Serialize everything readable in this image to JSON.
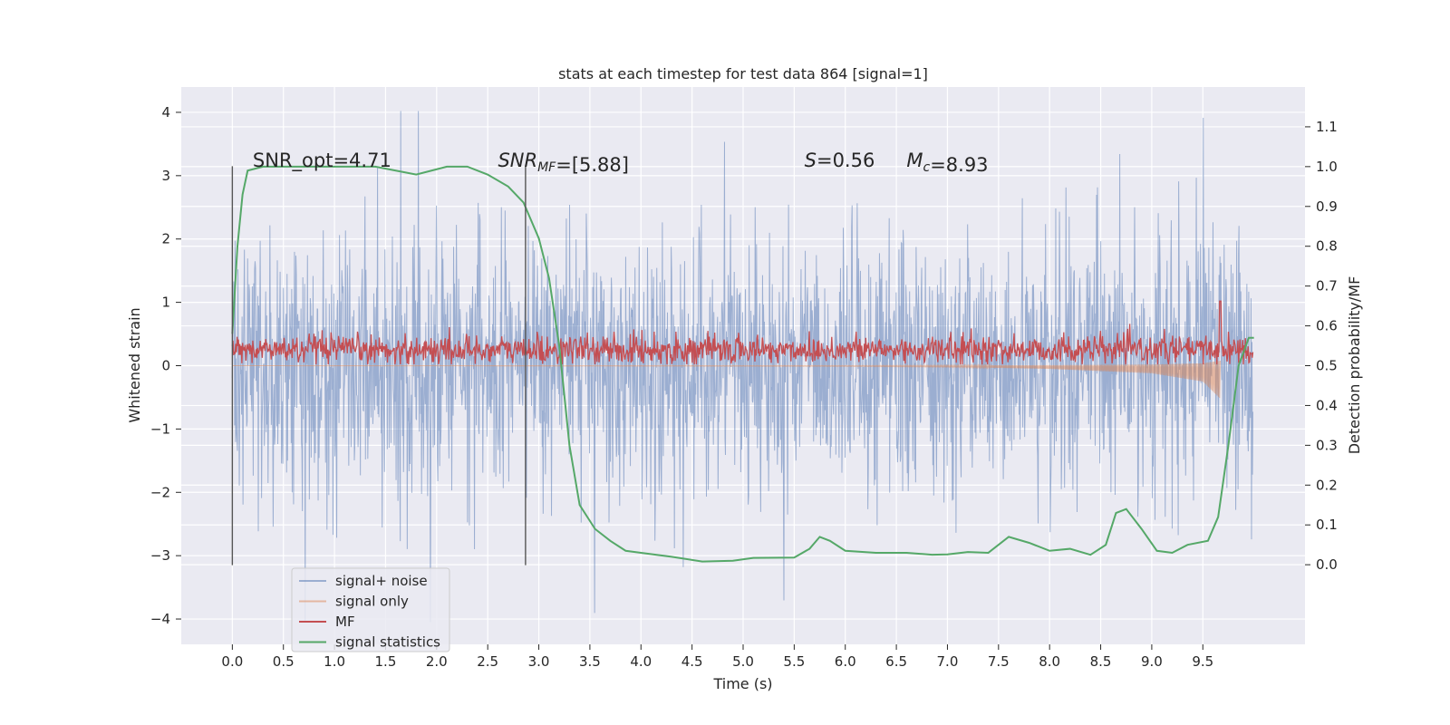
{
  "chart_data": {
    "type": "line",
    "title": "stats at each timestep for test data 864 [signal=1]",
    "xlabel": "Time (s)",
    "ylabel": "Whitened strain",
    "y2label": "Detection probability/MF",
    "xlim": [
      -0.5,
      10.5
    ],
    "ylim": [
      -4.4,
      4.4
    ],
    "y2lim": [
      -0.2,
      1.2
    ],
    "x_ticks": [
      0.0,
      0.5,
      1.0,
      1.5,
      2.0,
      2.5,
      3.0,
      3.5,
      4.0,
      4.5,
      5.0,
      5.5,
      6.0,
      6.5,
      7.0,
      7.5,
      8.0,
      8.5,
      9.0,
      9.5
    ],
    "x_tick_labels": [
      "0.0",
      "0.5",
      "1.0",
      "1.5",
      "2.0",
      "2.5",
      "3.0",
      "3.5",
      "4.0",
      "4.5",
      "5.0",
      "5.5",
      "6.0",
      "6.5",
      "7.0",
      "7.5",
      "8.0",
      "8.5",
      "9.0",
      "9.5"
    ],
    "y_ticks": [
      -4,
      -3,
      -2,
      -1,
      0,
      1,
      2,
      3,
      4
    ],
    "y_tick_labels": [
      "−4",
      "−3",
      "−2",
      "−1",
      "0",
      "1",
      "2",
      "3",
      "4"
    ],
    "y2_ticks": [
      0.0,
      0.1,
      0.2,
      0.3,
      0.4,
      0.5,
      0.6,
      0.7,
      0.8,
      0.9,
      1.0,
      1.1
    ],
    "y2_tick_labels": [
      "0.0",
      "0.1",
      "0.2",
      "0.3",
      "0.4",
      "0.5",
      "0.6",
      "0.7",
      "0.8",
      "0.9",
      "1.0",
      "1.1"
    ],
    "grid": true,
    "legend_position": "bottom-left",
    "annotations": [
      {
        "parts": [
          {
            "text": "SNR_opt=4.71",
            "italic": false
          }
        ],
        "x": 0.2,
        "y": 3.2
      },
      {
        "parts": [
          {
            "text": "SNR",
            "italic": true
          },
          {
            "text": "MF",
            "italic": true,
            "sub": true
          },
          {
            "text": "=[5.88]",
            "italic": false
          }
        ],
        "x": 2.6,
        "y": 3.2
      },
      {
        "parts": [
          {
            "text": "S",
            "italic": true
          },
          {
            "text": "=0.56",
            "italic": false
          }
        ],
        "x": 5.6,
        "y": 3.2
      },
      {
        "parts": [
          {
            "text": "M",
            "italic": true
          },
          {
            "text": "c",
            "italic": true,
            "sub": true
          },
          {
            "text": "=8.93",
            "italic": false
          }
        ],
        "x": 6.6,
        "y": 3.2
      }
    ],
    "vertical_lines": [
      {
        "x": 0.0,
        "ymin": -3.15,
        "ymax": 3.15,
        "color": "#555555"
      },
      {
        "x": 2.87,
        "ymin": -3.15,
        "ymax": 3.15,
        "color": "#555555"
      }
    ],
    "series": [
      {
        "name": "signal+ noise",
        "axis": "left",
        "style": "noise",
        "color": "#4c72b0",
        "opacity": 0.5,
        "x_range": [
          0.0,
          9.99
        ],
        "envelope_approx": 1.0,
        "peak_max": 4.02,
        "peak_min": -4.05
      },
      {
        "name": "signal only",
        "axis": "left",
        "style": "chirp",
        "color": "#dd8452",
        "opacity": 0.5,
        "x_range": [
          0.0,
          9.67
        ],
        "points": [
          {
            "x": 6.0,
            "y": -0.01
          },
          {
            "x": 7.0,
            "y": -0.02
          },
          {
            "x": 8.0,
            "y": -0.05
          },
          {
            "x": 9.0,
            "y": -0.12
          },
          {
            "x": 9.5,
            "y": -0.25
          },
          {
            "x": 9.67,
            "y": -0.52
          }
        ]
      },
      {
        "name": "MF",
        "axis": "left",
        "style": "noise-band",
        "color": "#c44e52",
        "x_range": [
          0.0,
          9.99
        ],
        "baseline": 0.25,
        "spread": 0.3,
        "peak": {
          "x": 9.67,
          "y": 1.02
        }
      },
      {
        "name": "signal statistics",
        "axis": "right",
        "style": "line",
        "color": "#55a868",
        "points": [
          [
            0.0,
            0.58
          ],
          [
            0.05,
            0.8
          ],
          [
            0.1,
            0.93
          ],
          [
            0.15,
            0.99
          ],
          [
            0.3,
            1.0
          ],
          [
            0.6,
            1.0
          ],
          [
            1.0,
            1.0
          ],
          [
            1.4,
            1.0
          ],
          [
            1.6,
            0.99
          ],
          [
            1.8,
            0.98
          ],
          [
            1.95,
            0.99
          ],
          [
            2.1,
            1.0
          ],
          [
            2.3,
            1.0
          ],
          [
            2.5,
            0.98
          ],
          [
            2.7,
            0.95
          ],
          [
            2.85,
            0.91
          ],
          [
            3.0,
            0.82
          ],
          [
            3.1,
            0.72
          ],
          [
            3.2,
            0.55
          ],
          [
            3.3,
            0.3
          ],
          [
            3.4,
            0.15
          ],
          [
            3.55,
            0.09
          ],
          [
            3.7,
            0.06
          ],
          [
            3.85,
            0.035
          ],
          [
            4.0,
            0.03
          ],
          [
            4.3,
            0.02
          ],
          [
            4.6,
            0.008
          ],
          [
            4.9,
            0.01
          ],
          [
            5.1,
            0.017
          ],
          [
            5.5,
            0.018
          ],
          [
            5.65,
            0.04
          ],
          [
            5.75,
            0.07
          ],
          [
            5.85,
            0.06
          ],
          [
            6.0,
            0.035
          ],
          [
            6.3,
            0.03
          ],
          [
            6.6,
            0.03
          ],
          [
            6.85,
            0.025
          ],
          [
            7.0,
            0.026
          ],
          [
            7.2,
            0.032
          ],
          [
            7.4,
            0.03
          ],
          [
            7.6,
            0.07
          ],
          [
            7.8,
            0.055
          ],
          [
            8.0,
            0.035
          ],
          [
            8.2,
            0.04
          ],
          [
            8.4,
            0.025
          ],
          [
            8.55,
            0.05
          ],
          [
            8.65,
            0.13
          ],
          [
            8.75,
            0.14
          ],
          [
            8.9,
            0.09
          ],
          [
            9.05,
            0.035
          ],
          [
            9.2,
            0.03
          ],
          [
            9.35,
            0.05
          ],
          [
            9.55,
            0.06
          ],
          [
            9.65,
            0.12
          ],
          [
            9.75,
            0.3
          ],
          [
            9.85,
            0.5
          ],
          [
            9.95,
            0.57
          ],
          [
            10.0,
            0.57
          ]
        ]
      }
    ]
  }
}
